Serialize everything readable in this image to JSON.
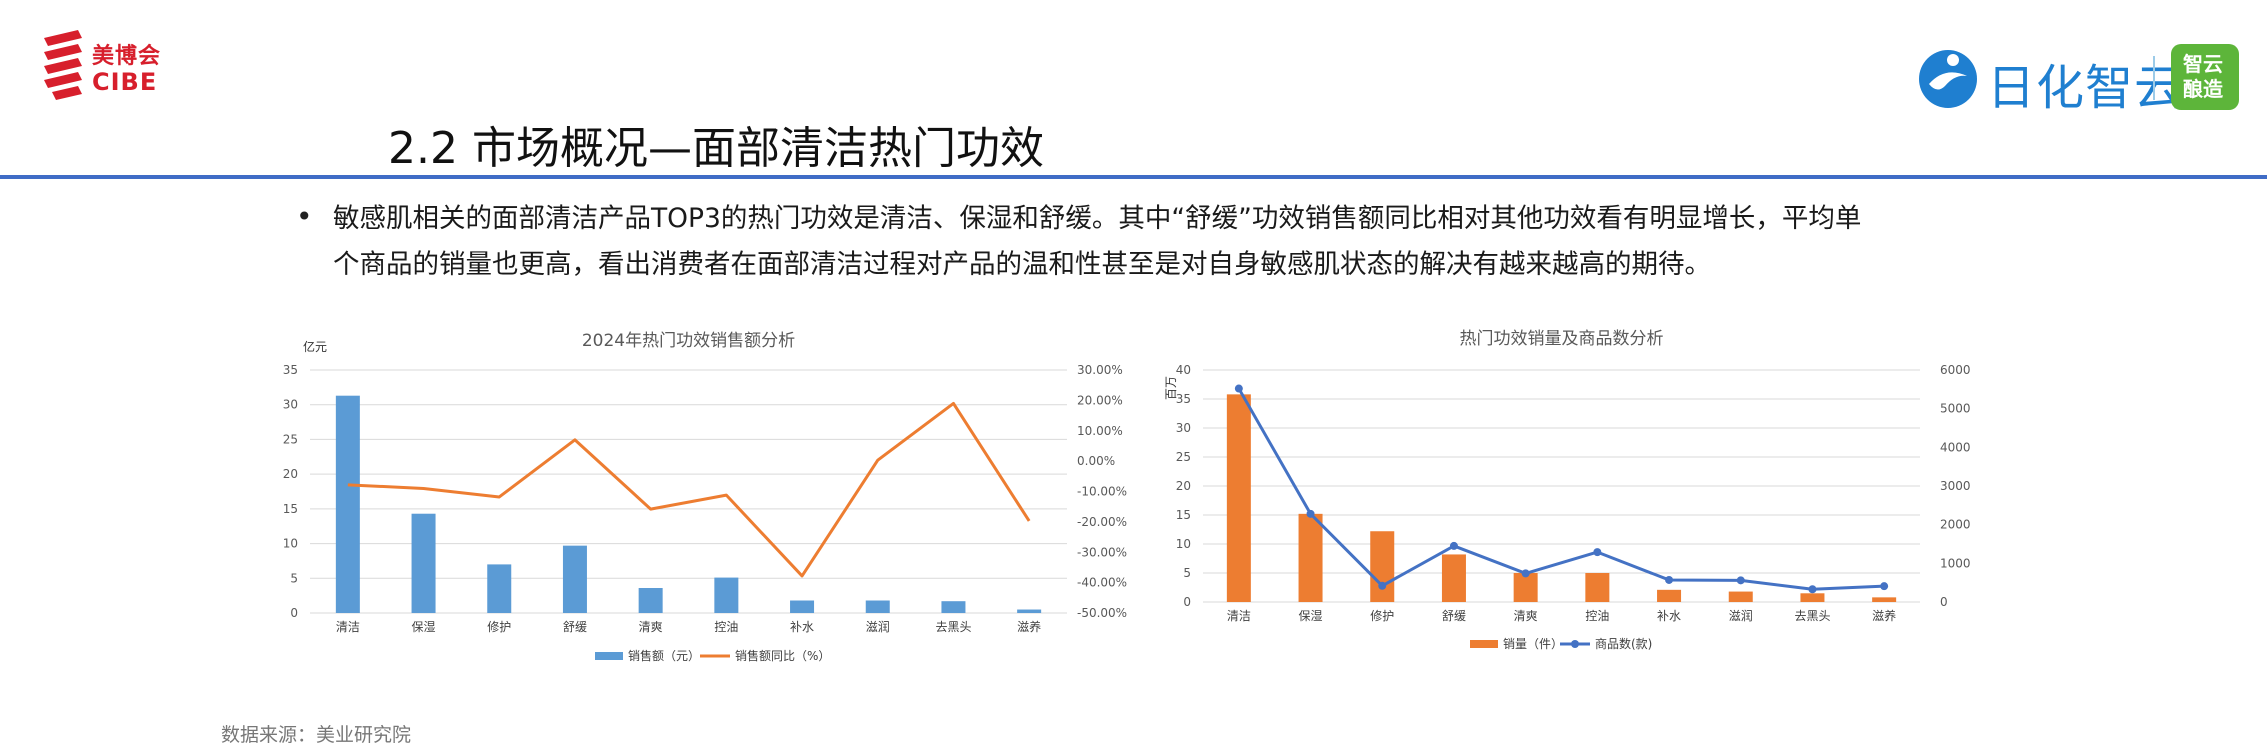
{
  "header": {
    "logo_left_cn": "美博会",
    "logo_left_en": "CIBE",
    "logo_right_brand": "日化智云",
    "logo_right_badge": [
      "智云",
      "酿造"
    ],
    "title": "2.2 市场概况—面部清洁热门功效"
  },
  "bullet": {
    "line1": "敏感肌相关的面部清洁产品TOP3的热门功效是清洁、保湿和舒缓。其中“舒缓”功效销售额同比相对其他功效看有明显增长，平均单",
    "line2": "个商品的销量也更高，看出消费者在面部清洁过程对产品的温和性甚至是对自身敏感肌状态的解决有越来越高的期待。"
  },
  "source": "数据来源：美业研究院",
  "colors": {
    "accent_rule": "#3f6cc6",
    "bar_blue": "#5b9bd5",
    "line_orange": "#ed7d31",
    "bar_orange": "#ed7d31",
    "line_blue": "#4472c4",
    "brand_red": "#d71f2c"
  },
  "chart_data": [
    {
      "type": "bar",
      "title": "2024年热门功效销售额分析",
      "y_unit": "亿元",
      "categories": [
        "清洁",
        "保湿",
        "修护",
        "舒缓",
        "清爽",
        "控油",
        "补水",
        "滋润",
        "去黑头",
        "滋养"
      ],
      "series": [
        {
          "name": "销售额（元）",
          "type": "bar",
          "axis": "left",
          "values": [
            31.3,
            14.3,
            7.0,
            9.7,
            3.6,
            5.1,
            1.8,
            1.8,
            1.7,
            0.5
          ]
        },
        {
          "name": "销售额同比（%）",
          "type": "line",
          "axis": "right",
          "values": [
            -7.8,
            -9.0,
            -11.8,
            7.0,
            -15.8,
            -11.2,
            -37.8,
            0.3,
            19.0,
            -19.7
          ]
        }
      ],
      "ylim_left": [
        0,
        35
      ],
      "yticks_left": [
        0,
        5,
        10,
        15,
        20,
        25,
        30,
        35
      ],
      "ylim_right": [
        -50,
        30
      ],
      "yticks_right_labels": [
        "-50.00%",
        "-40.00%",
        "-30.00%",
        "-20.00%",
        "-10.00%",
        "0.00%",
        "10.00%",
        "20.00%",
        "30.00%"
      ],
      "legend": [
        "销售额（元）",
        "销售额同比（%）"
      ],
      "legend_position": "bottom",
      "grid": true
    },
    {
      "type": "bar",
      "title": "热门功效销量及商品数分析",
      "y_unit": "百万",
      "categories": [
        "清洁",
        "保湿",
        "修护",
        "舒缓",
        "清爽",
        "控油",
        "补水",
        "滋润",
        "去黑头",
        "滋养"
      ],
      "series": [
        {
          "name": "销量（件）",
          "type": "bar",
          "axis": "left",
          "values": [
            35.8,
            15.2,
            12.2,
            8.2,
            5.0,
            5.0,
            2.1,
            1.8,
            1.5,
            0.8
          ]
        },
        {
          "name": "商品数(款)",
          "type": "line",
          "axis": "right",
          "values": [
            5520,
            2280,
            420,
            1450,
            740,
            1290,
            570,
            560,
            330,
            410
          ]
        }
      ],
      "ylim_left": [
        0,
        40
      ],
      "yticks_left": [
        0,
        5,
        10,
        15,
        20,
        25,
        30,
        35,
        40
      ],
      "ylim_right": [
        0,
        6000
      ],
      "yticks_right": [
        0,
        1000,
        2000,
        3000,
        4000,
        5000,
        6000
      ],
      "legend": [
        "销量（件）",
        "商品数(款)"
      ],
      "legend_position": "bottom",
      "grid": true
    }
  ]
}
